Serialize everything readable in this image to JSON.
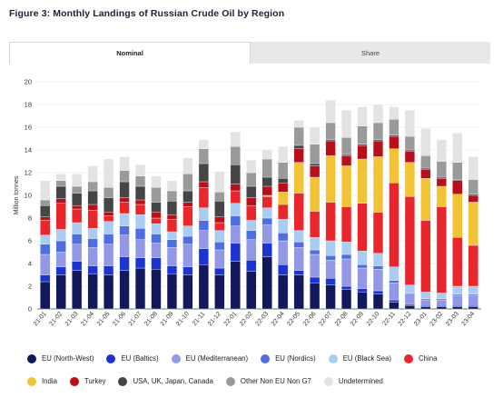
{
  "title": "Figure 3: Monthly Landings of Russian Crude Oil by Region",
  "tabs": [
    {
      "label": "Nominal",
      "active": true
    },
    {
      "label": "Share",
      "active": false
    }
  ],
  "chart_data": {
    "type": "bar",
    "stacked": true,
    "ylabel": "Million tonnes",
    "xlabel": "",
    "ylim": [
      0,
      20
    ],
    "yticks": [
      0,
      2,
      4,
      6,
      8,
      10,
      12,
      14,
      16,
      18,
      20
    ],
    "grid": true,
    "legend_position": "bottom",
    "categories": [
      "21-01",
      "21-02",
      "21-03",
      "21-04",
      "21-05",
      "21-06",
      "21-07",
      "21-08",
      "21-09",
      "21-10",
      "21-11",
      "21-12",
      "22-01",
      "22-02",
      "22-03",
      "22-04",
      "22-05",
      "22-06",
      "22-07",
      "22-08",
      "22-09",
      "22-10",
      "22-11",
      "22-12",
      "23-01",
      "23-02",
      "23-03",
      "23-04"
    ],
    "series": [
      {
        "name": "EU (North-West)",
        "color": "#12185c",
        "values": [
          2.4,
          3.0,
          3.4,
          3.1,
          3.0,
          3.4,
          3.6,
          3.5,
          3.1,
          3.0,
          3.9,
          3.0,
          4.2,
          3.3,
          4.6,
          3.0,
          3.0,
          2.3,
          2.1,
          1.7,
          1.5,
          1.3,
          0.6,
          0.3,
          0.2,
          0.2,
          0.2,
          0.2
        ]
      },
      {
        "name": "EU (Baltics)",
        "color": "#1c34d0",
        "values": [
          0.6,
          0.7,
          0.8,
          0.7,
          0.8,
          1.2,
          0.9,
          1.0,
          0.7,
          0.7,
          1.4,
          0.6,
          1.6,
          1.0,
          1.2,
          0.9,
          0.4,
          0.5,
          0.6,
          0.3,
          0.3,
          0.3,
          0.2,
          0.1,
          0.1,
          0.1,
          0.1,
          0.1
        ]
      },
      {
        "name": "EU (Mediterranean)",
        "color": "#9297e6",
        "values": [
          1.8,
          1.3,
          1.5,
          1.6,
          1.9,
          1.9,
          1.6,
          1.3,
          1.6,
          2.0,
          1.6,
          1.6,
          1.5,
          1.8,
          1.6,
          2.1,
          2.0,
          2.0,
          1.6,
          2.4,
          1.8,
          1.9,
          1.5,
          0.9,
          0.5,
          0.5,
          0.9,
          0.9
        ]
      },
      {
        "name": "EU (Nordics)",
        "color": "#4f6fe0",
        "values": [
          0.9,
          1.0,
          0.9,
          0.8,
          0.9,
          0.8,
          1.0,
          0.8,
          0.7,
          0.7,
          0.9,
          0.7,
          0.9,
          0.8,
          0.6,
          0.7,
          0.5,
          0.4,
          0.4,
          0.4,
          0.3,
          0.3,
          0.2,
          0.1,
          0.1,
          0.1,
          0.1,
          0.1
        ]
      },
      {
        "name": "EU (Black Sea)",
        "color": "#a9cdf2",
        "values": [
          0.8,
          1.0,
          1.0,
          0.9,
          1.1,
          1.1,
          1.2,
          0.9,
          0.7,
          0.9,
          1.1,
          1.0,
          1.1,
          0.9,
          0.9,
          1.2,
          1.0,
          1.1,
          1.3,
          1.1,
          1.2,
          1.1,
          1.2,
          0.7,
          0.6,
          0.5,
          0.7,
          0.7
        ]
      },
      {
        "name": "China",
        "color": "#e8262b",
        "values": [
          1.3,
          2.3,
          1.2,
          1.6,
          0.5,
          1.0,
          0.9,
          0.5,
          1.1,
          1.7,
          1.8,
          0.7,
          1.1,
          1.3,
          1.0,
          1.3,
          3.3,
          2.3,
          3.4,
          3.1,
          4.2,
          3.6,
          7.4,
          7.8,
          6.3,
          7.6,
          4.3,
          3.6
        ]
      },
      {
        "name": "India",
        "color": "#f2c435",
        "values": [
          0,
          0,
          0,
          0,
          0,
          0,
          0,
          0,
          0,
          0,
          0,
          0,
          0,
          0,
          0.1,
          1.1,
          2.7,
          3.0,
          4.1,
          3.6,
          3.9,
          4.9,
          3.0,
          3.0,
          3.7,
          1.8,
          3.8,
          3.8
        ]
      },
      {
        "name": "Turkey",
        "color": "#b8101a",
        "values": [
          0.3,
          0.4,
          0.3,
          0.5,
          0.3,
          0.4,
          0.4,
          0.5,
          0.4,
          0.4,
          0.5,
          0.5,
          0.6,
          0.7,
          0.8,
          0.8,
          1.2,
          1.0,
          1.3,
          0.9,
          1.2,
          1.4,
          1.1,
          1.0,
          0.8,
          0.7,
          1.2,
          0.6
        ]
      },
      {
        "name": "USA, UK, Japan, Canada",
        "color": "#454545",
        "values": [
          1.0,
          1.1,
          1.1,
          1.2,
          1.3,
          1.4,
          1.2,
          0.9,
          1.2,
          1.0,
          1.6,
          1.4,
          1.7,
          1.0,
          0.8,
          0.4,
          0.3,
          0.2,
          0.1,
          0.1,
          0.1,
          0.1,
          0.1,
          0.1,
          0.1,
          0.1,
          0.1,
          0.1
        ]
      },
      {
        "name": "Other Non EU Non G7",
        "color": "#9a9a9a",
        "values": [
          0.5,
          0.5,
          0.6,
          0.8,
          0.9,
          1.0,
          0.9,
          1.3,
          0.9,
          1.5,
          1.3,
          0.8,
          1.6,
          1.2,
          1.6,
          1.4,
          1.6,
          1.7,
          1.5,
          1.5,
          1.6,
          1.5,
          1.4,
          1.2,
          1.1,
          1.4,
          1.5,
          1.3
        ]
      },
      {
        "name": "Undetermined",
        "color": "#e3e3e3",
        "values": [
          1.7,
          0.6,
          1.1,
          1.4,
          2.5,
          1.2,
          1.0,
          1.0,
          0.9,
          1.4,
          0.8,
          1.8,
          1.3,
          1.1,
          0.8,
          1.4,
          0.6,
          1.5,
          2.0,
          2.4,
          1.7,
          1.6,
          1.1,
          2.3,
          2.4,
          1.9,
          2.6,
          2.0
        ]
      }
    ]
  }
}
